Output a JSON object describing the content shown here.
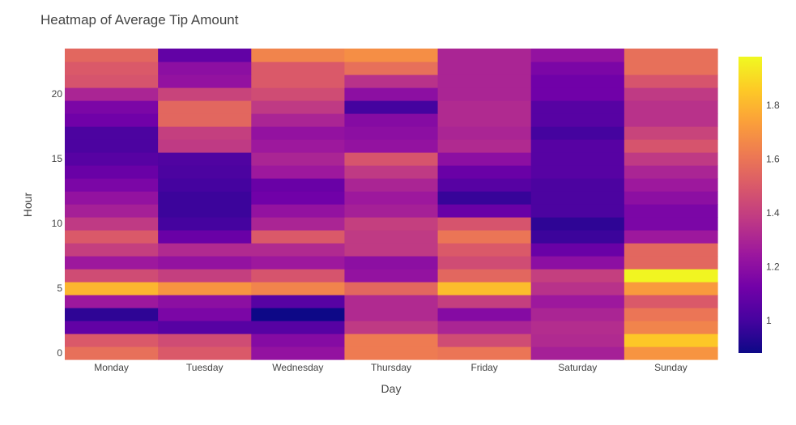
{
  "chart_data": {
    "type": "heatmap",
    "title": "Heatmap of Average Tip Amount",
    "xlabel": "Day",
    "ylabel": "Hour",
    "x": [
      "Monday",
      "Tuesday",
      "Wednesday",
      "Thursday",
      "Friday",
      "Saturday",
      "Sunday"
    ],
    "y": [
      0,
      1,
      2,
      3,
      4,
      5,
      6,
      7,
      8,
      9,
      10,
      11,
      12,
      13,
      14,
      15,
      16,
      17,
      18,
      19,
      20,
      21,
      22,
      23
    ],
    "yticks": [
      0,
      5,
      10,
      15,
      20
    ],
    "zmin": 0.88,
    "zmax": 1.98,
    "colorbar_ticks": [
      1,
      1.2,
      1.4,
      1.6,
      1.8
    ],
    "colorscale": [
      "#0d0887",
      "#46039f",
      "#7201a8",
      "#9c179e",
      "#bd3786",
      "#d8576b",
      "#ed7953",
      "#fb9f3a",
      "#fdca26",
      "#f0f921"
    ],
    "z": [
      [
        1.58,
        1.5,
        1.22,
        1.62,
        1.6,
        1.28,
        1.7
      ],
      [
        1.5,
        1.45,
        1.18,
        1.62,
        1.45,
        1.32,
        1.85
      ],
      [
        1.08,
        1.05,
        1.05,
        1.38,
        1.3,
        1.33,
        1.65
      ],
      [
        0.95,
        1.15,
        0.88,
        1.32,
        1.18,
        1.3,
        1.6
      ],
      [
        1.25,
        1.2,
        1.05,
        1.32,
        1.4,
        1.25,
        1.5
      ],
      [
        1.8,
        1.7,
        1.65,
        1.55,
        1.82,
        1.35,
        1.72
      ],
      [
        1.45,
        1.4,
        1.48,
        1.22,
        1.55,
        1.4,
        1.97
      ],
      [
        1.25,
        1.22,
        1.25,
        1.2,
        1.45,
        1.2,
        1.55
      ],
      [
        1.4,
        1.32,
        1.32,
        1.38,
        1.5,
        1.1,
        1.55
      ],
      [
        1.5,
        1.1,
        1.5,
        1.38,
        1.6,
        0.98,
        1.25
      ],
      [
        1.38,
        1.0,
        1.3,
        1.4,
        1.48,
        0.95,
        1.15
      ],
      [
        1.28,
        0.98,
        1.22,
        1.28,
        1.1,
        1.02,
        1.15
      ],
      [
        1.22,
        0.98,
        1.12,
        1.25,
        0.97,
        1.02,
        1.2
      ],
      [
        1.15,
        1.0,
        1.1,
        1.3,
        1.05,
        1.02,
        1.25
      ],
      [
        1.1,
        1.02,
        1.25,
        1.38,
        1.1,
        1.05,
        1.3
      ],
      [
        1.05,
        1.03,
        1.3,
        1.48,
        1.2,
        1.05,
        1.38
      ],
      [
        1.02,
        1.38,
        1.25,
        1.22,
        1.32,
        1.05,
        1.48
      ],
      [
        1.02,
        1.4,
        1.22,
        1.2,
        1.3,
        1.0,
        1.42
      ],
      [
        1.12,
        1.55,
        1.3,
        1.18,
        1.32,
        1.05,
        1.35
      ],
      [
        1.15,
        1.55,
        1.38,
        1.0,
        1.32,
        1.05,
        1.35
      ],
      [
        1.3,
        1.42,
        1.45,
        1.2,
        1.3,
        1.12,
        1.38
      ],
      [
        1.48,
        1.22,
        1.5,
        1.35,
        1.3,
        1.12,
        1.48
      ],
      [
        1.5,
        1.2,
        1.5,
        1.58,
        1.3,
        1.15,
        1.58
      ],
      [
        1.55,
        1.08,
        1.65,
        1.68,
        1.3,
        1.22,
        1.58
      ]
    ]
  }
}
